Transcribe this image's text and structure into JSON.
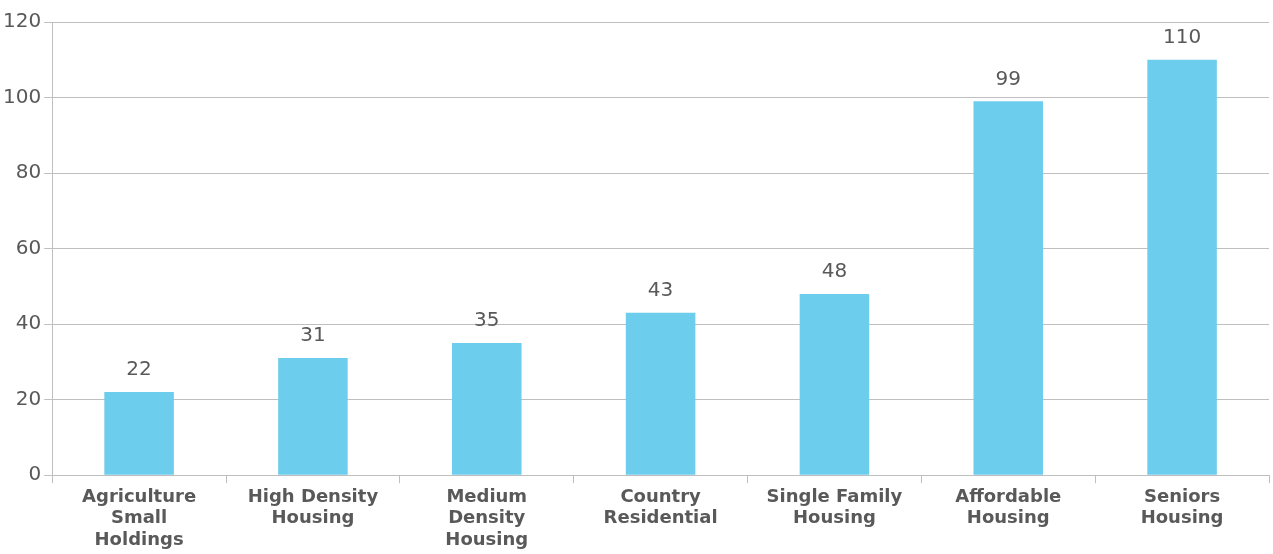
{
  "chart_data": {
    "type": "bar",
    "categories": [
      "Agriculture Small Holdings",
      "High Density Housing",
      "Medium Density Housing",
      "Country Residential",
      "Single Family Housing",
      "Affordable Housing",
      "Seniors Housing"
    ],
    "values": [
      22,
      31,
      35,
      43,
      48,
      99,
      110
    ],
    "color": "#6dcdec",
    "ylim": [
      0,
      120
    ],
    "yticks": [
      0,
      20,
      40,
      60,
      80,
      100,
      120
    ],
    "grid": "y",
    "data_labels": true,
    "legend": false
  }
}
